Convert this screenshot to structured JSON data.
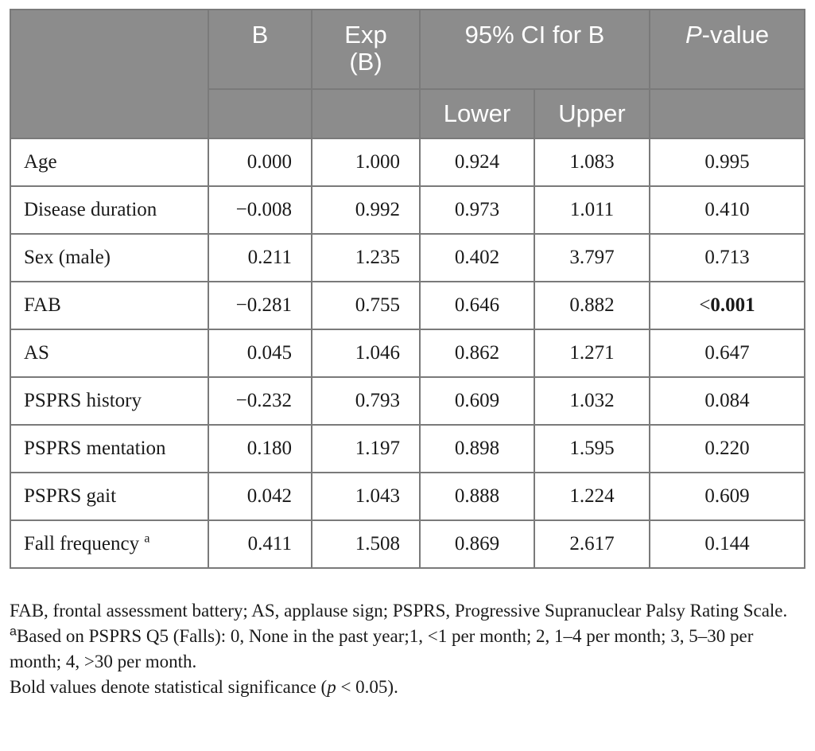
{
  "table": {
    "header": {
      "b": "B",
      "exp_b": [
        "Exp",
        "(B)"
      ],
      "ci": "95% CI for B",
      "p_value_italic": "P",
      "p_value_rest": "-value",
      "lower": "Lower",
      "upper": "Upper"
    },
    "rows": [
      {
        "label": "Age",
        "sup": "",
        "b": "0.000",
        "exp_b": "1.000",
        "lower": "0.924",
        "upper": "1.083",
        "p_prefix": "",
        "p": "0.995",
        "bold": false
      },
      {
        "label": "Disease duration",
        "sup": "",
        "b": "−0.008",
        "exp_b": "0.992",
        "lower": "0.973",
        "upper": "1.011",
        "p_prefix": "",
        "p": "0.410",
        "bold": false
      },
      {
        "label": "Sex (male)",
        "sup": "",
        "b": "0.211",
        "exp_b": "1.235",
        "lower": "0.402",
        "upper": "3.797",
        "p_prefix": "",
        "p": "0.713",
        "bold": false
      },
      {
        "label": "FAB",
        "sup": "",
        "b": "−0.281",
        "exp_b": "0.755",
        "lower": "0.646",
        "upper": "0.882",
        "p_prefix": "<",
        "p": "0.001",
        "bold": true
      },
      {
        "label": "AS",
        "sup": "",
        "b": "0.045",
        "exp_b": "1.046",
        "lower": "0.862",
        "upper": "1.271",
        "p_prefix": "",
        "p": "0.647",
        "bold": false
      },
      {
        "label": "PSPRS history",
        "sup": "",
        "b": "−0.232",
        "exp_b": "0.793",
        "lower": "0.609",
        "upper": "1.032",
        "p_prefix": "",
        "p": "0.084",
        "bold": false
      },
      {
        "label": "PSPRS mentation",
        "sup": "",
        "b": "0.180",
        "exp_b": "1.197",
        "lower": "0.898",
        "upper": "1.595",
        "p_prefix": "",
        "p": "0.220",
        "bold": false
      },
      {
        "label": "PSPRS gait",
        "sup": "",
        "b": "0.042",
        "exp_b": "1.043",
        "lower": "0.888",
        "upper": "1.224",
        "p_prefix": "",
        "p": "0.609",
        "bold": false
      },
      {
        "label": "Fall frequency ",
        "sup": "a",
        "b": "0.411",
        "exp_b": "1.508",
        "lower": "0.869",
        "upper": "2.617",
        "p_prefix": "",
        "p": "0.144",
        "bold": false
      }
    ]
  },
  "notes": {
    "abbreviations": "FAB, frontal assessment battery; AS, applause sign; PSPRS, Progressive Supranuclear Palsy Rating Scale.",
    "footnote_marker": "a",
    "footnote_text": "Based on PSPRS Q5 (Falls): 0, None in the past year;1, <1 per month; 2, 1–4 per month; 3, 5–30 per month; 4, >30 per month.",
    "bold_note": "Bold values denote statistical significance (p < 0.05)."
  },
  "colors": {
    "header_bg": "#8c8c8c",
    "header_text": "#ffffff",
    "border": "#7a7a7a",
    "body_text": "#1a1a1a"
  }
}
